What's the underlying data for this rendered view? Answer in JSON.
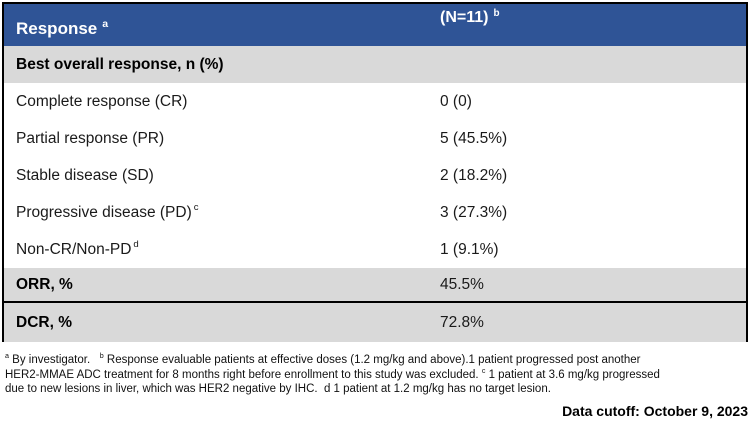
{
  "colors": {
    "header_bg": "#2F5496",
    "gray_row_bg": "#D9D9D9",
    "border": "#000000",
    "header_text": "#FFFFFF"
  },
  "table": {
    "header": {
      "col1_label": "Response",
      "col1_sup": "a",
      "col2_label": "(N=11)",
      "col2_sup": "b"
    },
    "section_label": "Best overall response, n (%)",
    "rows": [
      {
        "label": "Complete response (CR)",
        "sup": "",
        "value": "0 (0)"
      },
      {
        "label": "Partial response (PR)",
        "sup": "",
        "value": "5 (45.5%)"
      },
      {
        "label": "Stable disease (SD)",
        "sup": "",
        "value": "2 (18.2%)"
      },
      {
        "label": "Progressive disease (PD)",
        "sup": "c",
        "value": "3 (27.3%)"
      },
      {
        "label": "Non-CR/Non-PD",
        "sup": "d",
        "value": "1 (9.1%)"
      }
    ],
    "summary_rows": [
      {
        "label": "ORR, %",
        "value": "45.5%"
      },
      {
        "label": "DCR, %",
        "value": "72.8%"
      }
    ]
  },
  "footnotes": {
    "lines": [
      [
        {
          "sup": true,
          "t": "a"
        },
        {
          "sup": false,
          "t": " By investigator.   "
        },
        {
          "sup": true,
          "t": "b"
        },
        {
          "sup": false,
          "t": " Response evaluable patients at effective doses (1.2 mg/kg and above).1 patient progressed post another"
        }
      ],
      [
        {
          "sup": false,
          "t": "HER2-MMAE ADC treatment for 8 months right before enrollment to this study was excluded. "
        },
        {
          "sup": true,
          "t": "c"
        },
        {
          "sup": false,
          "t": " 1 patient at 3.6 mg/kg progressed"
        }
      ],
      [
        {
          "sup": false,
          "t": "due to new lesions in liver, which was HER2 negative by IHC.  d 1 patient at 1.2 mg/kg has no target lesion."
        }
      ]
    ]
  },
  "footer": {
    "data_cutoff": "Data cutoff: October 9, 2023"
  }
}
